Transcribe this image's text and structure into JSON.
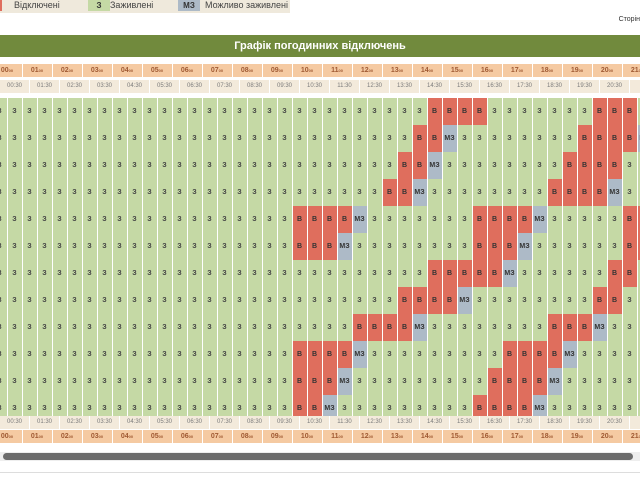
{
  "legend": [
    {
      "symbol": "",
      "label": "Відключені",
      "color": "#df6e5d"
    },
    {
      "symbol": "З",
      "label": "Заживлені",
      "color": "#c5d9a5"
    },
    {
      "symbol": "МЗ",
      "label": "Можливо заживлені",
      "color": "#adbac7"
    }
  ],
  "page_link": "Сторін",
  "title": "Графік погодинних відключень",
  "hours_top": [
    "00",
    "01",
    "02",
    "03",
    "04",
    "05",
    "06",
    "07",
    "08",
    "09",
    "10",
    "11",
    "12",
    "13",
    "14",
    "15",
    "16",
    "17",
    "18",
    "19",
    "20",
    "21"
  ],
  "halves_top": [
    "00:30",
    "01:30",
    "02:30",
    "03:30",
    "04:30",
    "05:30",
    "06:30",
    "07:30",
    "08:30",
    "09:30",
    "10:30",
    "11:30",
    "12:30",
    "13:30",
    "14:30",
    "15:30",
    "16:30",
    "17:30",
    "18:30",
    "19:30",
    "20:30",
    "21"
  ],
  "halves_bottom": [
    "00:30",
    "01:30",
    "02:30",
    "03:30",
    "04:30",
    "05:30",
    "06:30",
    "07:30",
    "08:30",
    "09:30",
    "10:30",
    "11:30",
    "12:30",
    "13:30",
    "14:30",
    "15:30",
    "16:30",
    "17:30",
    "18:30",
    "19:30",
    "20:30",
    "21"
  ],
  "hours_bottom": [
    "00",
    "01",
    "02",
    "03",
    "04",
    "05",
    "06",
    "07",
    "08",
    "09",
    "10",
    "11",
    "12",
    "13",
    "14",
    "15",
    "16",
    "17",
    "18",
    "19",
    "20",
    "21"
  ],
  "hour_suffix": "00",
  "status_labels": {
    "z": "З",
    "v": "В",
    "m": "МЗ"
  },
  "schedule_rows": [
    "zzzzzzzzzzzzzzzzzzzzzzzzzzzzzvvvvzzzzzzzvvvz",
    "zzzzzzzzzzzzzzzzzzzzzzzzzzzzvvmzzzzzzzzvvvvm",
    "zzzzzzzzzzzzzzzzzzzzzzzzzzzvvmzzzzzzzzvvvvzz",
    "zzzzzzzzzzzzzzzzzzzzzzzzzzvvmzzzzzzzzvvvvmzz",
    "zzzzzzzzzzzzzzzzzzzzvvvvmzzzzzzzvvvvmzzzzzvv",
    "zzzzzzzzzzzzzzzzzzzzvvvmzzzzzzzzvvvmzzzzzzvv",
    "zzzzzzzzzzzzzzzzzzzzzzzzzzzzzvvvvvmzzzzzzvvz",
    "zzzzzzzzzzzzzzzzzzzzzzzzzzzvvvvmzzzzzzzzvvzz",
    "zzzzzzzzzzzzzzzzzzzzzzzzvvvvmzzzzzzzzvvvmzzz",
    "zzzzzzzzzzzzzzzzzzzzvvvvmzzzzzzzzzvvvvmzzzzz",
    "zzzzzzzzzzzzzzzzzzzzvvvmzzzzzzzzzvvvvmzzzzzz",
    "zzzzzzzzzzzzzzzzzzzzvvmzzzzzzzzzvvvvmzzzzzzz"
  ]
}
